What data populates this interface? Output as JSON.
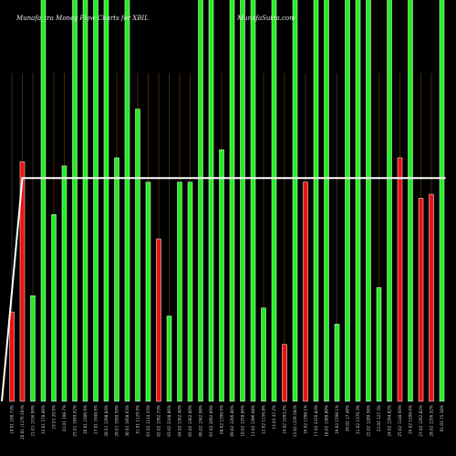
{
  "header": {
    "title": "Munafa_tra  Money Flow  Charts for XBIL",
    "site": "MunafaSutra.com"
  },
  "colors": {
    "up": "#22ee22",
    "down": "#ee1111",
    "line": "#ffffff",
    "grid": "#6b4a12",
    "background": "#000000"
  },
  "chart_data": {
    "type": "bar",
    "title": "Munafa_tra  Money Flow  Charts for XBIL",
    "categories": [
      "19.01 100.73%",
      "20.01 (1176.50)%",
      "21.01 1536.99%",
      "22.01 178.86%",
      "23.01 20.0%",
      "24.01 198.7%",
      "25.01 1649.02%",
      "26.01 2306.6%",
      "27.01 1948.6%",
      "28.01 1298.84%",
      "29.01 1950.59%",
      "30.01 1958.63%",
      "31.01 1129.9%",
      "01.02 1124.33%",
      "02.02 1392.73%",
      "03.02 2108.86%",
      "04.02 1302.40%",
      "05.02 1302.00%",
      "06.02 1562.98%",
      "07.02 2092.09%",
      "08.02 1390.6%",
      "09.02 1206.80%",
      "10.02 1258.86%",
      "11.02 1396.08%",
      "12.02 1156.8%",
      "13.02 47.2%",
      "14.02 1093.2%",
      "15.02 (229.58)%",
      "16.02 1398.1%",
      "17.02 2416.84%",
      "18.02 1389.89%",
      "19.02 1598.1%",
      "20.02 17.48%",
      "21.02 1370.3%",
      "22.02 1289.58%",
      "23.02 127.3%",
      "24.02 1294.82%",
      "25.02 1148.60%",
      "26.02 1599.6%",
      "27.02 1262.82%",
      "28.02 1256.52%",
      "01.03 15.38%"
    ],
    "values": [
      22,
      59,
      26,
      100,
      46,
      58,
      100,
      100,
      100,
      100,
      60,
      100,
      72,
      54,
      40,
      21,
      54,
      54,
      100,
      100,
      62,
      100,
      100,
      100,
      23,
      100,
      14,
      100,
      54,
      100,
      100,
      19,
      100,
      100,
      100,
      28,
      100,
      60,
      100,
      50,
      51,
      100
    ],
    "directions": [
      "down",
      "down",
      "up",
      "up",
      "up",
      "up",
      "up",
      "up",
      "up",
      "up",
      "up",
      "up",
      "up",
      "up",
      "down",
      "up",
      "up",
      "up",
      "up",
      "up",
      "up",
      "up",
      "up",
      "up",
      "up",
      "up",
      "down",
      "up",
      "down",
      "up",
      "up",
      "up",
      "up",
      "up",
      "up",
      "up",
      "up",
      "down",
      "up",
      "down",
      "down",
      "up"
    ],
    "line": [
      0,
      55,
      55,
      55,
      55,
      55,
      55,
      55,
      55,
      55,
      55,
      55,
      55,
      55,
      55,
      55,
      55,
      55,
      55,
      55,
      55,
      55,
      55,
      55,
      55,
      55,
      55,
      55,
      55,
      55,
      55,
      55,
      55,
      55,
      55,
      55,
      55,
      55,
      55,
      55,
      55,
      55
    ],
    "ylim": [
      0,
      100
    ],
    "grid": true,
    "xlabel": "",
    "ylabel": ""
  }
}
